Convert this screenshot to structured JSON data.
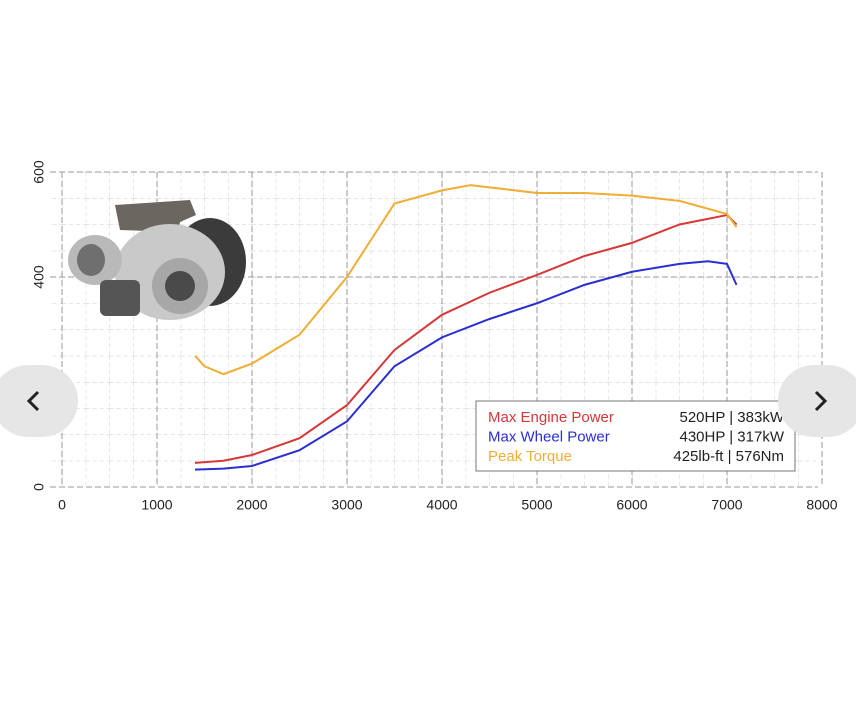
{
  "chart_data": {
    "type": "line",
    "xlim": [
      0,
      8000
    ],
    "xticks": [
      0,
      1000,
      2000,
      3000,
      4000,
      5000,
      6000,
      7000,
      8000
    ],
    "ylim": [
      0,
      600
    ],
    "yticks": [
      0,
      400,
      600
    ],
    "grid": true,
    "series": [
      {
        "name": "Max Engine Power",
        "label": "520HP | 383kW",
        "color": "#d63838",
        "x": [
          1400,
          1700,
          2000,
          2500,
          3000,
          3500,
          4000,
          4500,
          5000,
          5500,
          6000,
          6500,
          7000,
          7100
        ],
        "values": [
          46,
          50,
          61,
          93,
          156,
          261,
          328,
          370,
          404,
          440,
          465,
          500,
          518,
          500
        ]
      },
      {
        "name": "Max Wheel Power",
        "label": "430HP | 317kW",
        "color": "#2a2fd0",
        "x": [
          1400,
          1700,
          2000,
          2500,
          3000,
          3500,
          4000,
          4500,
          5000,
          5500,
          6000,
          6500,
          6800,
          7000,
          7100
        ],
        "values": [
          33,
          35,
          40,
          70,
          125,
          230,
          285,
          320,
          350,
          385,
          410,
          425,
          430,
          425,
          385
        ]
      },
      {
        "name": "Peak Torque",
        "label": "425lb-ft | 576Nm",
        "color": "#f0ae34",
        "x": [
          1400,
          1500,
          1700,
          2000,
          2500,
          3000,
          3500,
          4000,
          4300,
          5000,
          5500,
          6000,
          6500,
          7000,
          7100
        ],
        "values": [
          250,
          230,
          215,
          235,
          290,
          400,
          540,
          565,
          575,
          560,
          560,
          555,
          545,
          520,
          495
        ]
      }
    ]
  }
}
